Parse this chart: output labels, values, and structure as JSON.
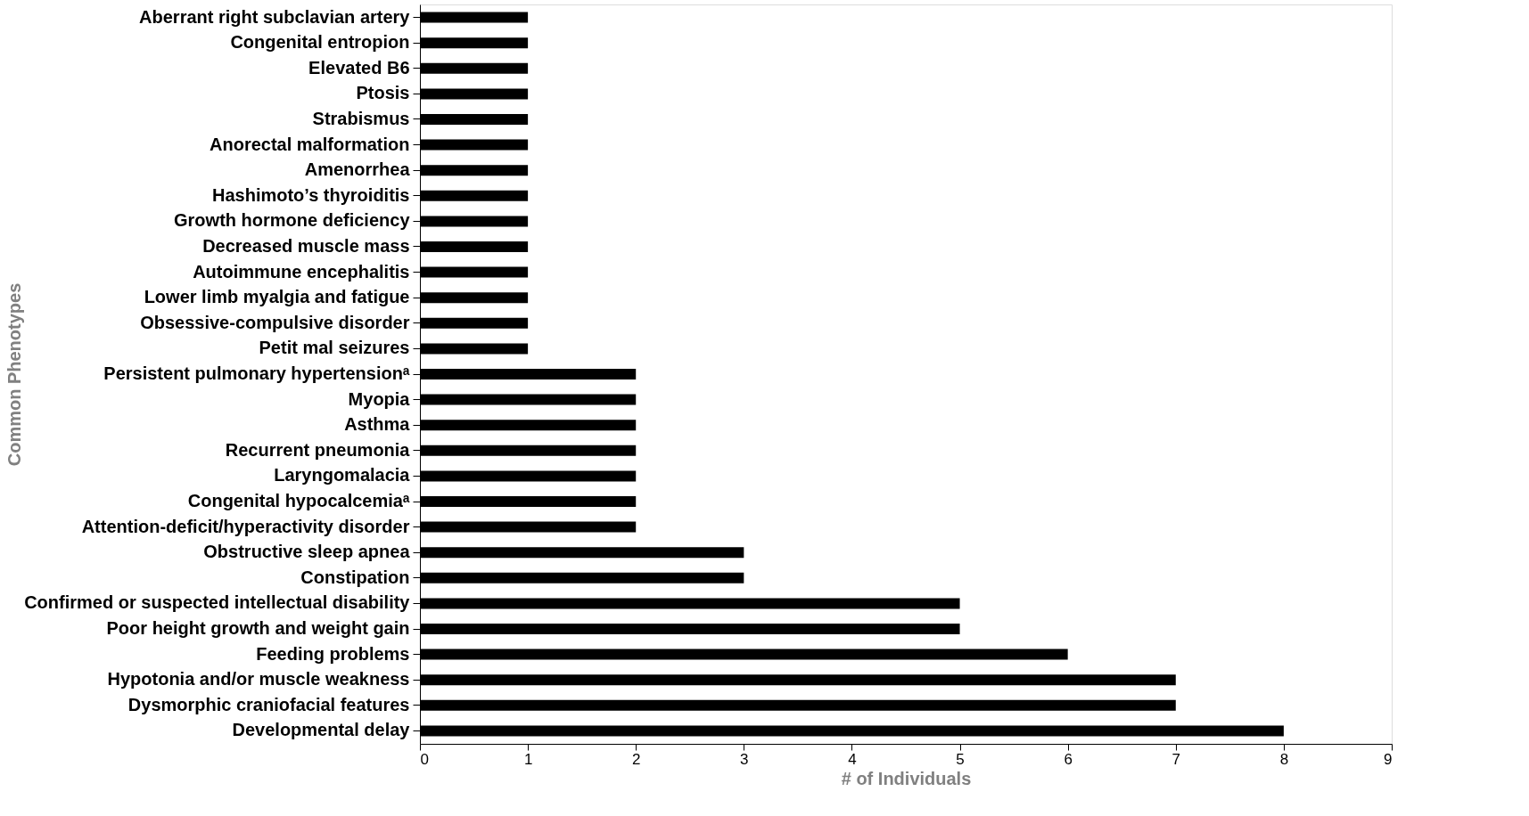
{
  "chart_data": {
    "type": "bar",
    "orientation": "horizontal",
    "xlabel": "# of Individuals",
    "ylabel": "Common Phenotypes",
    "categories": [
      "Aberrant right subclavian artery",
      "Congenital entropion",
      "Elevated B6",
      "Ptosis",
      "Strabismus",
      "Anorectal malformation",
      "Amenorrhea",
      "Hashimoto’s thyroiditis",
      "Growth hormone deficiency",
      "Decreased muscle mass",
      "Autoimmune encephalitis",
      "Lower limb myalgia and fatigue",
      "Obsessive-compulsive disorder",
      "Petit mal seizures",
      "Persistent pulmonary hypertensionᵃ",
      "Myopia",
      "Asthma",
      "Recurrent pneumonia",
      "Laryngomalacia",
      "Congenital hypocalcemiaᵃ",
      "Attention-deficit/hyperactivity disorder",
      "Obstructive sleep apnea",
      "Constipation",
      "Confirmed or suspected intellectual disability",
      "Poor height growth and weight gain",
      "Feeding problems",
      "Hypotonia and/or muscle weakness",
      "Dysmorphic craniofacial features",
      "Developmental delay"
    ],
    "values": [
      1,
      1,
      1,
      1,
      1,
      1,
      1,
      1,
      1,
      1,
      1,
      1,
      1,
      1,
      2,
      2,
      2,
      2,
      2,
      2,
      2,
      3,
      3,
      5,
      5,
      6,
      7,
      7,
      8
    ],
    "color": "#000000",
    "xlim": [
      0,
      9
    ],
    "xticks": [
      0,
      1,
      2,
      3,
      4,
      5,
      6,
      7,
      8,
      9
    ],
    "grid": false
  }
}
